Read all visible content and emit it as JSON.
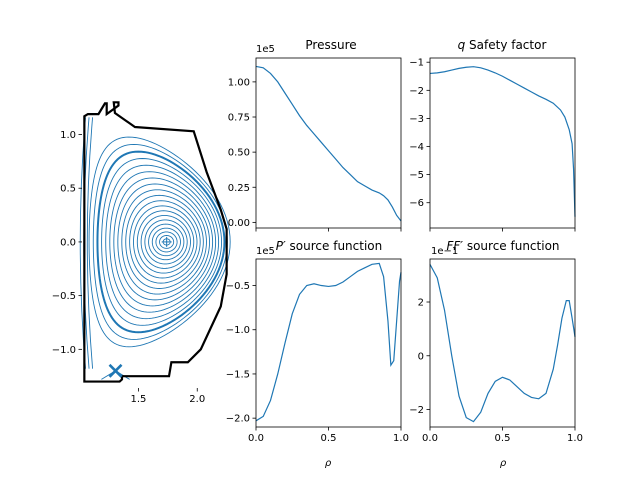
{
  "chart_data": [
    {
      "id": "flux",
      "type": "line",
      "title": "",
      "xlabel": "",
      "ylabel": "",
      "xlim": [
        1.02,
        2.27
      ],
      "ylim": [
        -1.36,
        1.34
      ],
      "xticks": [
        1.5,
        2.0
      ],
      "xtick_labels": [
        "1.5",
        "2.0"
      ],
      "yticks": [
        -1.0,
        -0.5,
        0.0,
        0.5,
        1.0
      ],
      "ytick_labels": [
        "−1.0",
        "−0.5",
        "0.0",
        "0.5",
        "1.0"
      ],
      "axis_center": [
        1.74,
        0.0
      ],
      "x_point": [
        1.305,
        -1.2
      ],
      "wall": {
        "color": "#000000",
        "x": [
          1.04,
          1.04,
          1.07,
          1.16,
          1.215,
          1.23,
          1.23,
          1.33,
          1.33,
          1.29,
          1.3,
          1.47,
          1.97,
          2.08,
          2.2,
          2.25,
          2.25,
          2.2,
          2.03,
          1.92,
          1.78,
          1.76,
          1.64,
          1.36,
          1.36,
          1.34,
          1.29,
          1.18,
          1.04,
          1.04
        ],
        "y": [
          -1.24,
          1.17,
          1.19,
          1.19,
          1.29,
          1.29,
          1.19,
          1.27,
          1.3,
          1.3,
          1.2,
          1.07,
          1.03,
          0.65,
          0.3,
          0.12,
          -0.3,
          -0.6,
          -1.0,
          -1.12,
          -1.12,
          -1.25,
          -1.25,
          -1.25,
          -1.28,
          -1.3,
          -1.3,
          -1.3,
          -1.3,
          -1.24
        ]
      },
      "line_color": "#1f77b4",
      "separatrix_rho": 0.88
    },
    {
      "id": "pressure",
      "type": "line",
      "title": "Pressure",
      "offset_text": "1e5",
      "xlim": [
        0,
        1
      ],
      "ylim": [
        -0.04,
        1.17
      ],
      "xticks": [
        0,
        0.5,
        1.0
      ],
      "yticks": [
        0,
        0.25,
        0.5,
        0.75,
        1.0
      ],
      "ytick_labels": [
        "0.00",
        "0.25",
        "0.50",
        "0.75",
        "1.00"
      ],
      "x": [
        0,
        0.05,
        0.1,
        0.15,
        0.2,
        0.25,
        0.3,
        0.35,
        0.4,
        0.45,
        0.5,
        0.55,
        0.6,
        0.65,
        0.7,
        0.75,
        0.8,
        0.85,
        0.88,
        0.91,
        0.94,
        0.97,
        1.0
      ],
      "y": [
        1.11,
        1.1,
        1.06,
        1.0,
        0.92,
        0.84,
        0.76,
        0.69,
        0.63,
        0.57,
        0.51,
        0.45,
        0.39,
        0.34,
        0.29,
        0.26,
        0.23,
        0.21,
        0.19,
        0.16,
        0.11,
        0.05,
        0.01
      ]
    },
    {
      "id": "q",
      "type": "line",
      "title": "q Safety factor",
      "title_math": "q",
      "title_rest": " Safety factor",
      "xlim": [
        0,
        1
      ],
      "ylim": [
        -6.9,
        -0.85
      ],
      "xticks": [
        0,
        0.5,
        1.0
      ],
      "yticks": [
        -1,
        -2,
        -3,
        -4,
        -5,
        -6
      ],
      "ytick_labels": [
        "−1",
        "−2",
        "−3",
        "−4",
        "−5",
        "−6"
      ],
      "x": [
        0,
        0.05,
        0.1,
        0.15,
        0.2,
        0.25,
        0.3,
        0.35,
        0.4,
        0.45,
        0.5,
        0.55,
        0.6,
        0.65,
        0.7,
        0.75,
        0.8,
        0.85,
        0.9,
        0.93,
        0.96,
        0.98,
        0.99,
        1.0
      ],
      "y": [
        -1.4,
        -1.38,
        -1.34,
        -1.28,
        -1.22,
        -1.18,
        -1.16,
        -1.2,
        -1.28,
        -1.38,
        -1.5,
        -1.64,
        -1.78,
        -1.92,
        -2.06,
        -2.2,
        -2.32,
        -2.46,
        -2.7,
        -2.95,
        -3.4,
        -3.9,
        -4.8,
        -6.5
      ]
    },
    {
      "id": "pprime",
      "type": "line",
      "title": "P′ source function",
      "title_math": "P′",
      "title_rest": " source function",
      "offset_text": "1e5",
      "xlim": [
        0,
        1
      ],
      "ylim": [
        -2.1,
        -0.2
      ],
      "xticks": [
        0,
        0.5,
        1.0
      ],
      "xtick_labels": [
        "0.0",
        "0.5",
        "1.0"
      ],
      "yticks": [
        -0.5,
        -1.0,
        -1.5,
        -2.0
      ],
      "ytick_labels": [
        "−0.5",
        "−1.0",
        "−1.5",
        "−2.0"
      ],
      "xlabel": "ρ",
      "x": [
        0,
        0.05,
        0.1,
        0.15,
        0.2,
        0.25,
        0.3,
        0.35,
        0.4,
        0.45,
        0.5,
        0.55,
        0.6,
        0.65,
        0.7,
        0.75,
        0.8,
        0.85,
        0.88,
        0.91,
        0.93,
        0.95,
        0.97,
        0.99,
        1.0
      ],
      "y": [
        -2.03,
        -1.98,
        -1.8,
        -1.5,
        -1.15,
        -0.82,
        -0.6,
        -0.5,
        -0.48,
        -0.5,
        -0.51,
        -0.5,
        -0.46,
        -0.4,
        -0.34,
        -0.3,
        -0.26,
        -0.25,
        -0.4,
        -0.9,
        -1.4,
        -1.35,
        -0.9,
        -0.45,
        -0.35
      ]
    },
    {
      "id": "ffprime",
      "type": "line",
      "title": "FF′ source function",
      "title_math": "FF′",
      "title_rest": " source function",
      "offset_text": "1e−1",
      "xlim": [
        0,
        1
      ],
      "ylim": [
        -2.65,
        3.6
      ],
      "xticks": [
        0,
        0.5,
        1.0
      ],
      "xtick_labels": [
        "0.0",
        "0.5",
        "1.0"
      ],
      "yticks": [
        2,
        0,
        -2
      ],
      "ytick_labels": [
        "2",
        "0",
        "−2"
      ],
      "xlabel": "ρ",
      "x": [
        0,
        0.05,
        0.1,
        0.15,
        0.2,
        0.25,
        0.3,
        0.35,
        0.4,
        0.45,
        0.5,
        0.55,
        0.6,
        0.65,
        0.7,
        0.75,
        0.8,
        0.85,
        0.88,
        0.91,
        0.94,
        0.96,
        0.98,
        1.0
      ],
      "y": [
        3.4,
        2.9,
        1.7,
        0.0,
        -1.5,
        -2.3,
        -2.45,
        -2.1,
        -1.4,
        -0.95,
        -0.8,
        -0.9,
        -1.15,
        -1.4,
        -1.55,
        -1.6,
        -1.4,
        -0.5,
        0.4,
        1.4,
        2.05,
        2.05,
        1.4,
        0.7
      ]
    }
  ]
}
